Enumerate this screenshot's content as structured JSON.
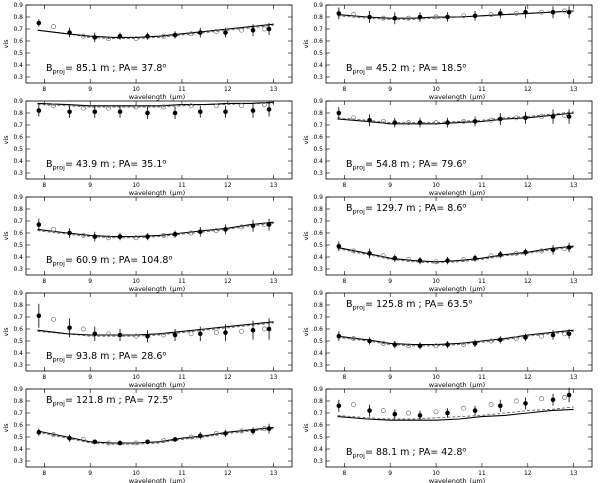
{
  "figure": {
    "xlabel": "wavelength",
    "xunit": "(μm)",
    "ylabel": "vis"
  },
  "chart_data": [
    {
      "type": "line",
      "panel": 1,
      "baseline": "85.1",
      "pa": "37.8",
      "ylim": [
        0.25,
        0.9
      ],
      "xlim": [
        7.6,
        13.4
      ],
      "x": [
        7.88,
        8.55,
        9.1,
        9.65,
        10.25,
        10.85,
        11.4,
        11.95,
        12.55,
        12.9
      ],
      "y": [
        0.75,
        0.67,
        0.63,
        0.64,
        0.64,
        0.65,
        0.67,
        0.67,
        0.69,
        0.7
      ],
      "yerr": [
        0.03,
        0.04,
        0.04,
        0.03,
        0.03,
        0.03,
        0.04,
        0.04,
        0.05,
        0.05
      ],
      "alt_x": [
        8.2,
        8.85,
        9.4,
        10.0,
        10.6,
        11.2,
        11.75,
        12.3,
        12.8
      ],
      "alt_y": [
        0.72,
        0.64,
        0.62,
        0.62,
        0.64,
        0.66,
        0.68,
        0.69,
        0.7
      ],
      "model_x": [
        7.85,
        8.5,
        9.0,
        9.5,
        10.0,
        10.5,
        11.0,
        11.5,
        12.0,
        12.5,
        13.0
      ],
      "model_solid": [
        0.69,
        0.66,
        0.64,
        0.63,
        0.63,
        0.64,
        0.66,
        0.68,
        0.7,
        0.72,
        0.74
      ],
      "model_dashed": [
        0.69,
        0.66,
        0.63,
        0.62,
        0.62,
        0.63,
        0.65,
        0.67,
        0.69,
        0.71,
        0.73
      ],
      "label_pos": "bottom-left"
    },
    {
      "type": "line",
      "panel": 2,
      "baseline": "45.2",
      "pa": "18.5",
      "ylim": [
        0.25,
        0.9
      ],
      "xlim": [
        7.6,
        13.4
      ],
      "x": [
        7.88,
        8.55,
        9.1,
        9.65,
        10.25,
        10.85,
        11.4,
        11.95,
        12.55,
        12.9
      ],
      "y": [
        0.83,
        0.8,
        0.79,
        0.8,
        0.8,
        0.81,
        0.83,
        0.84,
        0.84,
        0.84
      ],
      "yerr": [
        0.05,
        0.05,
        0.05,
        0.04,
        0.04,
        0.04,
        0.04,
        0.05,
        0.05,
        0.05
      ],
      "alt_x": [
        8.2,
        8.85,
        9.4,
        10.0,
        10.6,
        11.2,
        11.75,
        12.3,
        12.8
      ],
      "alt_y": [
        0.82,
        0.79,
        0.79,
        0.8,
        0.81,
        0.82,
        0.83,
        0.84,
        0.85
      ],
      "model_x": [
        7.85,
        8.5,
        9.0,
        9.5,
        10.0,
        10.5,
        11.0,
        11.5,
        12.0,
        12.5,
        13.0
      ],
      "model_solid": [
        0.82,
        0.8,
        0.79,
        0.79,
        0.8,
        0.8,
        0.81,
        0.82,
        0.83,
        0.84,
        0.85
      ],
      "model_dashed": [
        0.81,
        0.79,
        0.78,
        0.78,
        0.79,
        0.8,
        0.81,
        0.82,
        0.83,
        0.84,
        0.85
      ],
      "label_pos": "bottom-left"
    },
    {
      "type": "line",
      "panel": 3,
      "baseline": "43.9",
      "pa": "35.1",
      "ylim": [
        0.25,
        0.9
      ],
      "xlim": [
        7.6,
        13.4
      ],
      "x": [
        7.88,
        8.55,
        9.1,
        9.65,
        10.25,
        10.85,
        11.4,
        11.95,
        12.55,
        12.9
      ],
      "y": [
        0.82,
        0.81,
        0.81,
        0.81,
        0.8,
        0.8,
        0.81,
        0.81,
        0.82,
        0.83
      ],
      "yerr": [
        0.05,
        0.05,
        0.05,
        0.05,
        0.05,
        0.05,
        0.05,
        0.05,
        0.06,
        0.06
      ],
      "alt_x": [
        8.2,
        8.85,
        9.4,
        10.0,
        10.6,
        11.2,
        11.75,
        12.3,
        12.8
      ],
      "alt_y": [
        0.86,
        0.84,
        0.84,
        0.85,
        0.85,
        0.86,
        0.86,
        0.86,
        0.87
      ],
      "model_x": [
        7.85,
        8.5,
        9.0,
        9.5,
        10.0,
        10.5,
        11.0,
        11.5,
        12.0,
        12.5,
        13.0
      ],
      "model_solid": [
        0.88,
        0.87,
        0.86,
        0.86,
        0.86,
        0.86,
        0.87,
        0.87,
        0.88,
        0.88,
        0.89
      ],
      "model_dashed": [
        0.87,
        0.86,
        0.85,
        0.85,
        0.85,
        0.85,
        0.86,
        0.87,
        0.87,
        0.88,
        0.88
      ],
      "label_pos": "bottom-left"
    },
    {
      "type": "line",
      "panel": 4,
      "baseline": "54.8",
      "pa": "79.6",
      "ylim": [
        0.25,
        0.9
      ],
      "xlim": [
        7.6,
        13.4
      ],
      "x": [
        7.88,
        8.55,
        9.1,
        9.65,
        10.25,
        10.85,
        11.4,
        11.95,
        12.55,
        12.9
      ],
      "y": [
        0.8,
        0.74,
        0.72,
        0.72,
        0.72,
        0.73,
        0.75,
        0.76,
        0.77,
        0.77
      ],
      "yerr": [
        0.05,
        0.05,
        0.04,
        0.04,
        0.04,
        0.04,
        0.05,
        0.05,
        0.06,
        0.06
      ],
      "alt_x": [
        8.2,
        8.85,
        9.4,
        10.0,
        10.6,
        11.2,
        11.75,
        12.3,
        12.8
      ],
      "alt_y": [
        0.76,
        0.73,
        0.72,
        0.72,
        0.73,
        0.74,
        0.76,
        0.77,
        0.78
      ],
      "model_x": [
        7.85,
        8.5,
        9.0,
        9.5,
        10.0,
        10.5,
        11.0,
        11.5,
        12.0,
        12.5,
        13.0
      ],
      "model_solid": [
        0.75,
        0.73,
        0.71,
        0.71,
        0.71,
        0.72,
        0.73,
        0.75,
        0.76,
        0.78,
        0.8
      ],
      "model_dashed": [
        0.76,
        0.74,
        0.72,
        0.72,
        0.72,
        0.73,
        0.74,
        0.76,
        0.77,
        0.79,
        0.81
      ],
      "label_pos": "bottom-left"
    },
    {
      "type": "line",
      "panel": 5,
      "baseline": "60.9",
      "pa": "104.8",
      "ylim": [
        0.25,
        0.9
      ],
      "xlim": [
        7.6,
        13.4
      ],
      "x": [
        7.88,
        8.55,
        9.1,
        9.65,
        10.25,
        10.85,
        11.4,
        11.95,
        12.55,
        12.9
      ],
      "y": [
        0.67,
        0.6,
        0.57,
        0.57,
        0.57,
        0.59,
        0.61,
        0.63,
        0.66,
        0.67
      ],
      "yerr": [
        0.05,
        0.04,
        0.04,
        0.03,
        0.03,
        0.03,
        0.04,
        0.04,
        0.05,
        0.05
      ],
      "alt_x": [
        8.2,
        8.85,
        9.4,
        10.0,
        10.6,
        11.2,
        11.75,
        12.3,
        12.8
      ],
      "alt_y": [
        0.63,
        0.58,
        0.56,
        0.56,
        0.58,
        0.6,
        0.62,
        0.65,
        0.67
      ],
      "model_x": [
        7.85,
        8.5,
        9.0,
        9.5,
        10.0,
        10.5,
        11.0,
        11.5,
        12.0,
        12.5,
        13.0
      ],
      "model_solid": [
        0.63,
        0.6,
        0.58,
        0.57,
        0.57,
        0.58,
        0.6,
        0.62,
        0.64,
        0.67,
        0.69
      ],
      "model_dashed": [
        0.62,
        0.59,
        0.57,
        0.56,
        0.56,
        0.57,
        0.59,
        0.61,
        0.63,
        0.66,
        0.68
      ],
      "label_pos": "bottom-left"
    },
    {
      "type": "line",
      "panel": 6,
      "baseline": "129.7",
      "pa": "8.6",
      "ylim": [
        0.25,
        0.9
      ],
      "xlim": [
        7.6,
        13.4
      ],
      "x": [
        7.88,
        8.55,
        9.1,
        9.65,
        10.25,
        10.85,
        11.4,
        11.95,
        12.55,
        12.9
      ],
      "y": [
        0.49,
        0.43,
        0.39,
        0.37,
        0.37,
        0.39,
        0.42,
        0.44,
        0.46,
        0.48
      ],
      "yerr": [
        0.04,
        0.04,
        0.03,
        0.03,
        0.03,
        0.03,
        0.03,
        0.03,
        0.04,
        0.04
      ],
      "alt_x": [
        8.2,
        8.85,
        9.4,
        10.0,
        10.6,
        11.2,
        11.75,
        12.3,
        12.8
      ],
      "alt_y": [
        0.45,
        0.41,
        0.38,
        0.36,
        0.38,
        0.41,
        0.43,
        0.45,
        0.47
      ],
      "model_x": [
        7.85,
        8.5,
        9.0,
        9.5,
        10.0,
        10.5,
        11.0,
        11.5,
        12.0,
        12.5,
        13.0
      ],
      "model_solid": [
        0.48,
        0.43,
        0.39,
        0.37,
        0.36,
        0.37,
        0.39,
        0.42,
        0.44,
        0.47,
        0.49
      ],
      "model_dashed": [
        0.47,
        0.42,
        0.38,
        0.36,
        0.35,
        0.36,
        0.38,
        0.41,
        0.43,
        0.46,
        0.48
      ],
      "label_pos": "top-left"
    },
    {
      "type": "line",
      "panel": 7,
      "baseline": "93.8",
      "pa": "28.6",
      "ylim": [
        0.25,
        0.9
      ],
      "xlim": [
        7.6,
        13.4
      ],
      "x": [
        7.88,
        8.55,
        9.1,
        9.65,
        10.25,
        10.85,
        11.4,
        11.95,
        12.55,
        12.9
      ],
      "y": [
        0.71,
        0.61,
        0.56,
        0.55,
        0.54,
        0.55,
        0.56,
        0.57,
        0.59,
        0.6
      ],
      "yerr": [
        0.1,
        0.08,
        0.06,
        0.05,
        0.05,
        0.05,
        0.06,
        0.07,
        0.08,
        0.09
      ],
      "alt_x": [
        8.2,
        8.85,
        9.4,
        10.0,
        10.6,
        11.2,
        11.75,
        12.3,
        12.8
      ],
      "alt_y": [
        0.68,
        0.6,
        0.56,
        0.54,
        0.55,
        0.56,
        0.57,
        0.58,
        0.6
      ],
      "model_x": [
        7.85,
        8.5,
        9.0,
        9.5,
        10.0,
        10.5,
        11.0,
        11.5,
        12.0,
        12.5,
        13.0
      ],
      "model_solid": [
        0.59,
        0.56,
        0.55,
        0.55,
        0.55,
        0.56,
        0.58,
        0.6,
        0.62,
        0.64,
        0.66
      ],
      "model_dashed": [
        0.58,
        0.56,
        0.54,
        0.54,
        0.54,
        0.55,
        0.57,
        0.59,
        0.61,
        0.63,
        0.65
      ],
      "label_pos": "bottom-left"
    },
    {
      "type": "line",
      "panel": 8,
      "baseline": "125.8",
      "pa": "63.5",
      "ylim": [
        0.25,
        0.9
      ],
      "xlim": [
        7.6,
        13.4
      ],
      "x": [
        7.88,
        8.55,
        9.1,
        9.65,
        10.25,
        10.85,
        11.4,
        11.95,
        12.55,
        12.9
      ],
      "y": [
        0.54,
        0.5,
        0.47,
        0.46,
        0.47,
        0.48,
        0.51,
        0.53,
        0.55,
        0.56
      ],
      "yerr": [
        0.04,
        0.03,
        0.03,
        0.03,
        0.03,
        0.03,
        0.03,
        0.03,
        0.04,
        0.04
      ],
      "alt_x": [
        8.2,
        8.85,
        9.4,
        10.0,
        10.6,
        11.2,
        11.75,
        12.3,
        12.8
      ],
      "alt_y": [
        0.52,
        0.48,
        0.46,
        0.46,
        0.47,
        0.5,
        0.52,
        0.54,
        0.56
      ],
      "model_x": [
        7.85,
        8.5,
        9.0,
        9.5,
        10.0,
        10.5,
        11.0,
        11.5,
        12.0,
        12.5,
        13.0
      ],
      "model_solid": [
        0.54,
        0.51,
        0.48,
        0.47,
        0.47,
        0.48,
        0.5,
        0.52,
        0.55,
        0.57,
        0.59
      ],
      "model_dashed": [
        0.53,
        0.5,
        0.47,
        0.46,
        0.46,
        0.47,
        0.49,
        0.51,
        0.54,
        0.56,
        0.58
      ],
      "label_pos": "top-left"
    },
    {
      "type": "line",
      "panel": 9,
      "baseline": "121.8",
      "pa": "72.5",
      "ylim": [
        0.25,
        0.9
      ],
      "xlim": [
        7.6,
        13.4
      ],
      "x": [
        7.88,
        8.55,
        9.1,
        9.65,
        10.25,
        10.85,
        11.4,
        11.95,
        12.55,
        12.9
      ],
      "y": [
        0.54,
        0.49,
        0.46,
        0.45,
        0.46,
        0.48,
        0.51,
        0.53,
        0.55,
        0.57
      ],
      "yerr": [
        0.03,
        0.03,
        0.02,
        0.02,
        0.02,
        0.02,
        0.03,
        0.03,
        0.03,
        0.04
      ],
      "alt_x": [
        8.2,
        8.85,
        9.4,
        10.0,
        10.6,
        11.2,
        11.75,
        12.3,
        12.8
      ],
      "alt_y": [
        0.52,
        0.48,
        0.45,
        0.45,
        0.47,
        0.5,
        0.53,
        0.55,
        0.57
      ],
      "model_x": [
        7.85,
        8.5,
        9.0,
        9.5,
        10.0,
        10.5,
        11.0,
        11.5,
        12.0,
        12.5,
        13.0
      ],
      "model_solid": [
        0.55,
        0.5,
        0.46,
        0.45,
        0.45,
        0.46,
        0.49,
        0.51,
        0.54,
        0.56,
        0.58
      ],
      "model_dashed": [
        0.54,
        0.49,
        0.45,
        0.44,
        0.44,
        0.45,
        0.48,
        0.5,
        0.53,
        0.55,
        0.57
      ],
      "label_pos": "top-left"
    },
    {
      "type": "line",
      "panel": 10,
      "baseline": "88.1",
      "pa": "42.8",
      "ylim": [
        0.25,
        0.9
      ],
      "xlim": [
        7.6,
        13.4
      ],
      "x": [
        7.88,
        8.55,
        9.1,
        9.65,
        10.25,
        10.85,
        11.4,
        11.95,
        12.55,
        12.9
      ],
      "y": [
        0.76,
        0.72,
        0.69,
        0.68,
        0.7,
        0.72,
        0.76,
        0.78,
        0.81,
        0.85
      ],
      "yerr": [
        0.05,
        0.05,
        0.04,
        0.04,
        0.04,
        0.04,
        0.05,
        0.05,
        0.05,
        0.06
      ],
      "alt_x": [
        8.2,
        8.85,
        9.4,
        10.0,
        10.6,
        11.2,
        11.75,
        12.3,
        12.8
      ],
      "alt_y": [
        0.77,
        0.72,
        0.7,
        0.71,
        0.74,
        0.77,
        0.8,
        0.82,
        0.83
      ],
      "model_x": [
        7.85,
        8.5,
        9.0,
        9.5,
        10.0,
        10.5,
        11.0,
        11.5,
        12.0,
        12.5,
        13.0
      ],
      "model_solid": [
        0.67,
        0.65,
        0.64,
        0.64,
        0.64,
        0.65,
        0.67,
        0.68,
        0.7,
        0.72,
        0.73
      ],
      "model_dashed": [
        0.68,
        0.66,
        0.65,
        0.65,
        0.66,
        0.67,
        0.68,
        0.7,
        0.72,
        0.73,
        0.75
      ],
      "label_pos": "bottom-left"
    }
  ]
}
